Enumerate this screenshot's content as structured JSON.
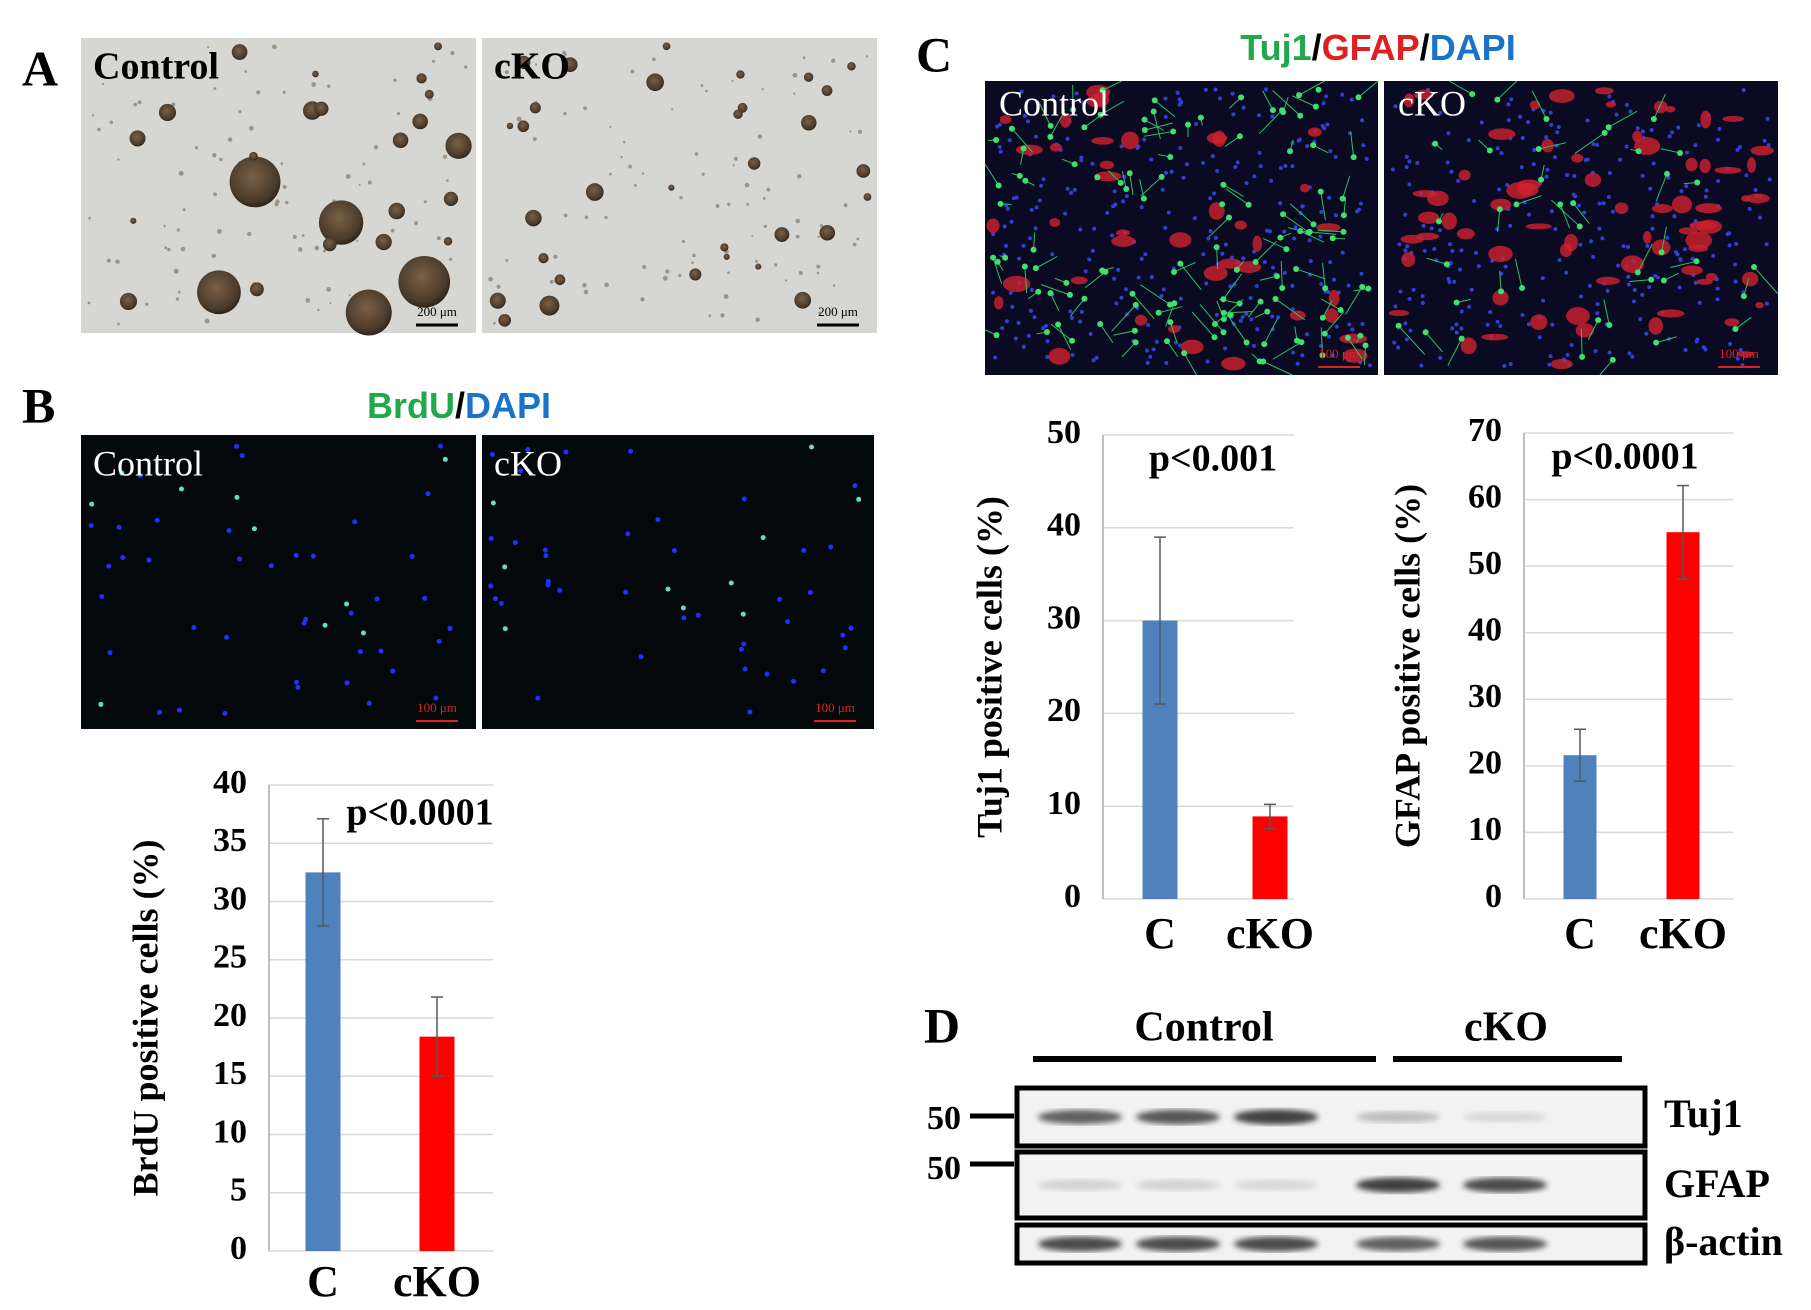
{
  "panel_labels": [
    "A",
    "B",
    "C",
    "D"
  ],
  "micrographs": [
    {
      "label": "Control",
      "scale": "200 μm"
    },
    {
      "label": "cKO",
      "scale": "200 μm"
    },
    {
      "label": "Control",
      "scale": "100 μm"
    },
    {
      "label": "cKO",
      "scale": "100 μm"
    },
    {
      "label": "Control",
      "scale": "100 μm"
    },
    {
      "label": "cKO",
      "scale": "100 μm"
    }
  ],
  "stain_titles": {
    "B": [
      "BrdU",
      "/",
      "DAPI"
    ],
    "C": [
      "Tuj1",
      "/",
      "GFAP",
      "/",
      "DAPI"
    ]
  },
  "chart_data": [
    {
      "type": "bar",
      "ylabel": "BrdU positive cells (%)",
      "annotation": "p<0.0001",
      "categories": [
        "C",
        "cKO"
      ],
      "values": [
        32.5,
        18.4
      ],
      "errors": [
        4.6,
        3.4
      ],
      "colors": [
        "#4f81bd",
        "#ff0000"
      ],
      "ylim": [
        0,
        40
      ],
      "yticks": [
        0,
        5,
        10,
        15,
        20,
        25,
        30,
        35,
        40
      ],
      "grid": true
    },
    {
      "type": "bar",
      "ylabel": "Tuj1 positive cells (%)",
      "annotation": "p<0.001",
      "categories": [
        "C",
        "cKO"
      ],
      "values": [
        30,
        8.9
      ],
      "errors": [
        9,
        1.3
      ],
      "colors": [
        "#4f81bd",
        "#ff0000"
      ],
      "ylim": [
        0,
        50
      ],
      "yticks": [
        0,
        10,
        20,
        30,
        40,
        50
      ],
      "grid": true
    },
    {
      "type": "bar",
      "ylabel": "GFAP positive cells (%)",
      "annotation": "p<0.0001",
      "categories": [
        "C",
        "cKO"
      ],
      "values": [
        21.6,
        55.1
      ],
      "errors": [
        3.9,
        7
      ],
      "colors": [
        "#4f81bd",
        "#ff0000"
      ],
      "ylim": [
        0,
        70
      ],
      "yticks": [
        0,
        10,
        20,
        30,
        40,
        50,
        60,
        70
      ],
      "grid": true
    }
  ],
  "western_blot": {
    "groups": [
      "Control",
      "cKO"
    ],
    "markers": [
      50,
      50
    ],
    "proteins": [
      "Tuj1",
      "GFAP",
      "β-actin"
    ]
  }
}
